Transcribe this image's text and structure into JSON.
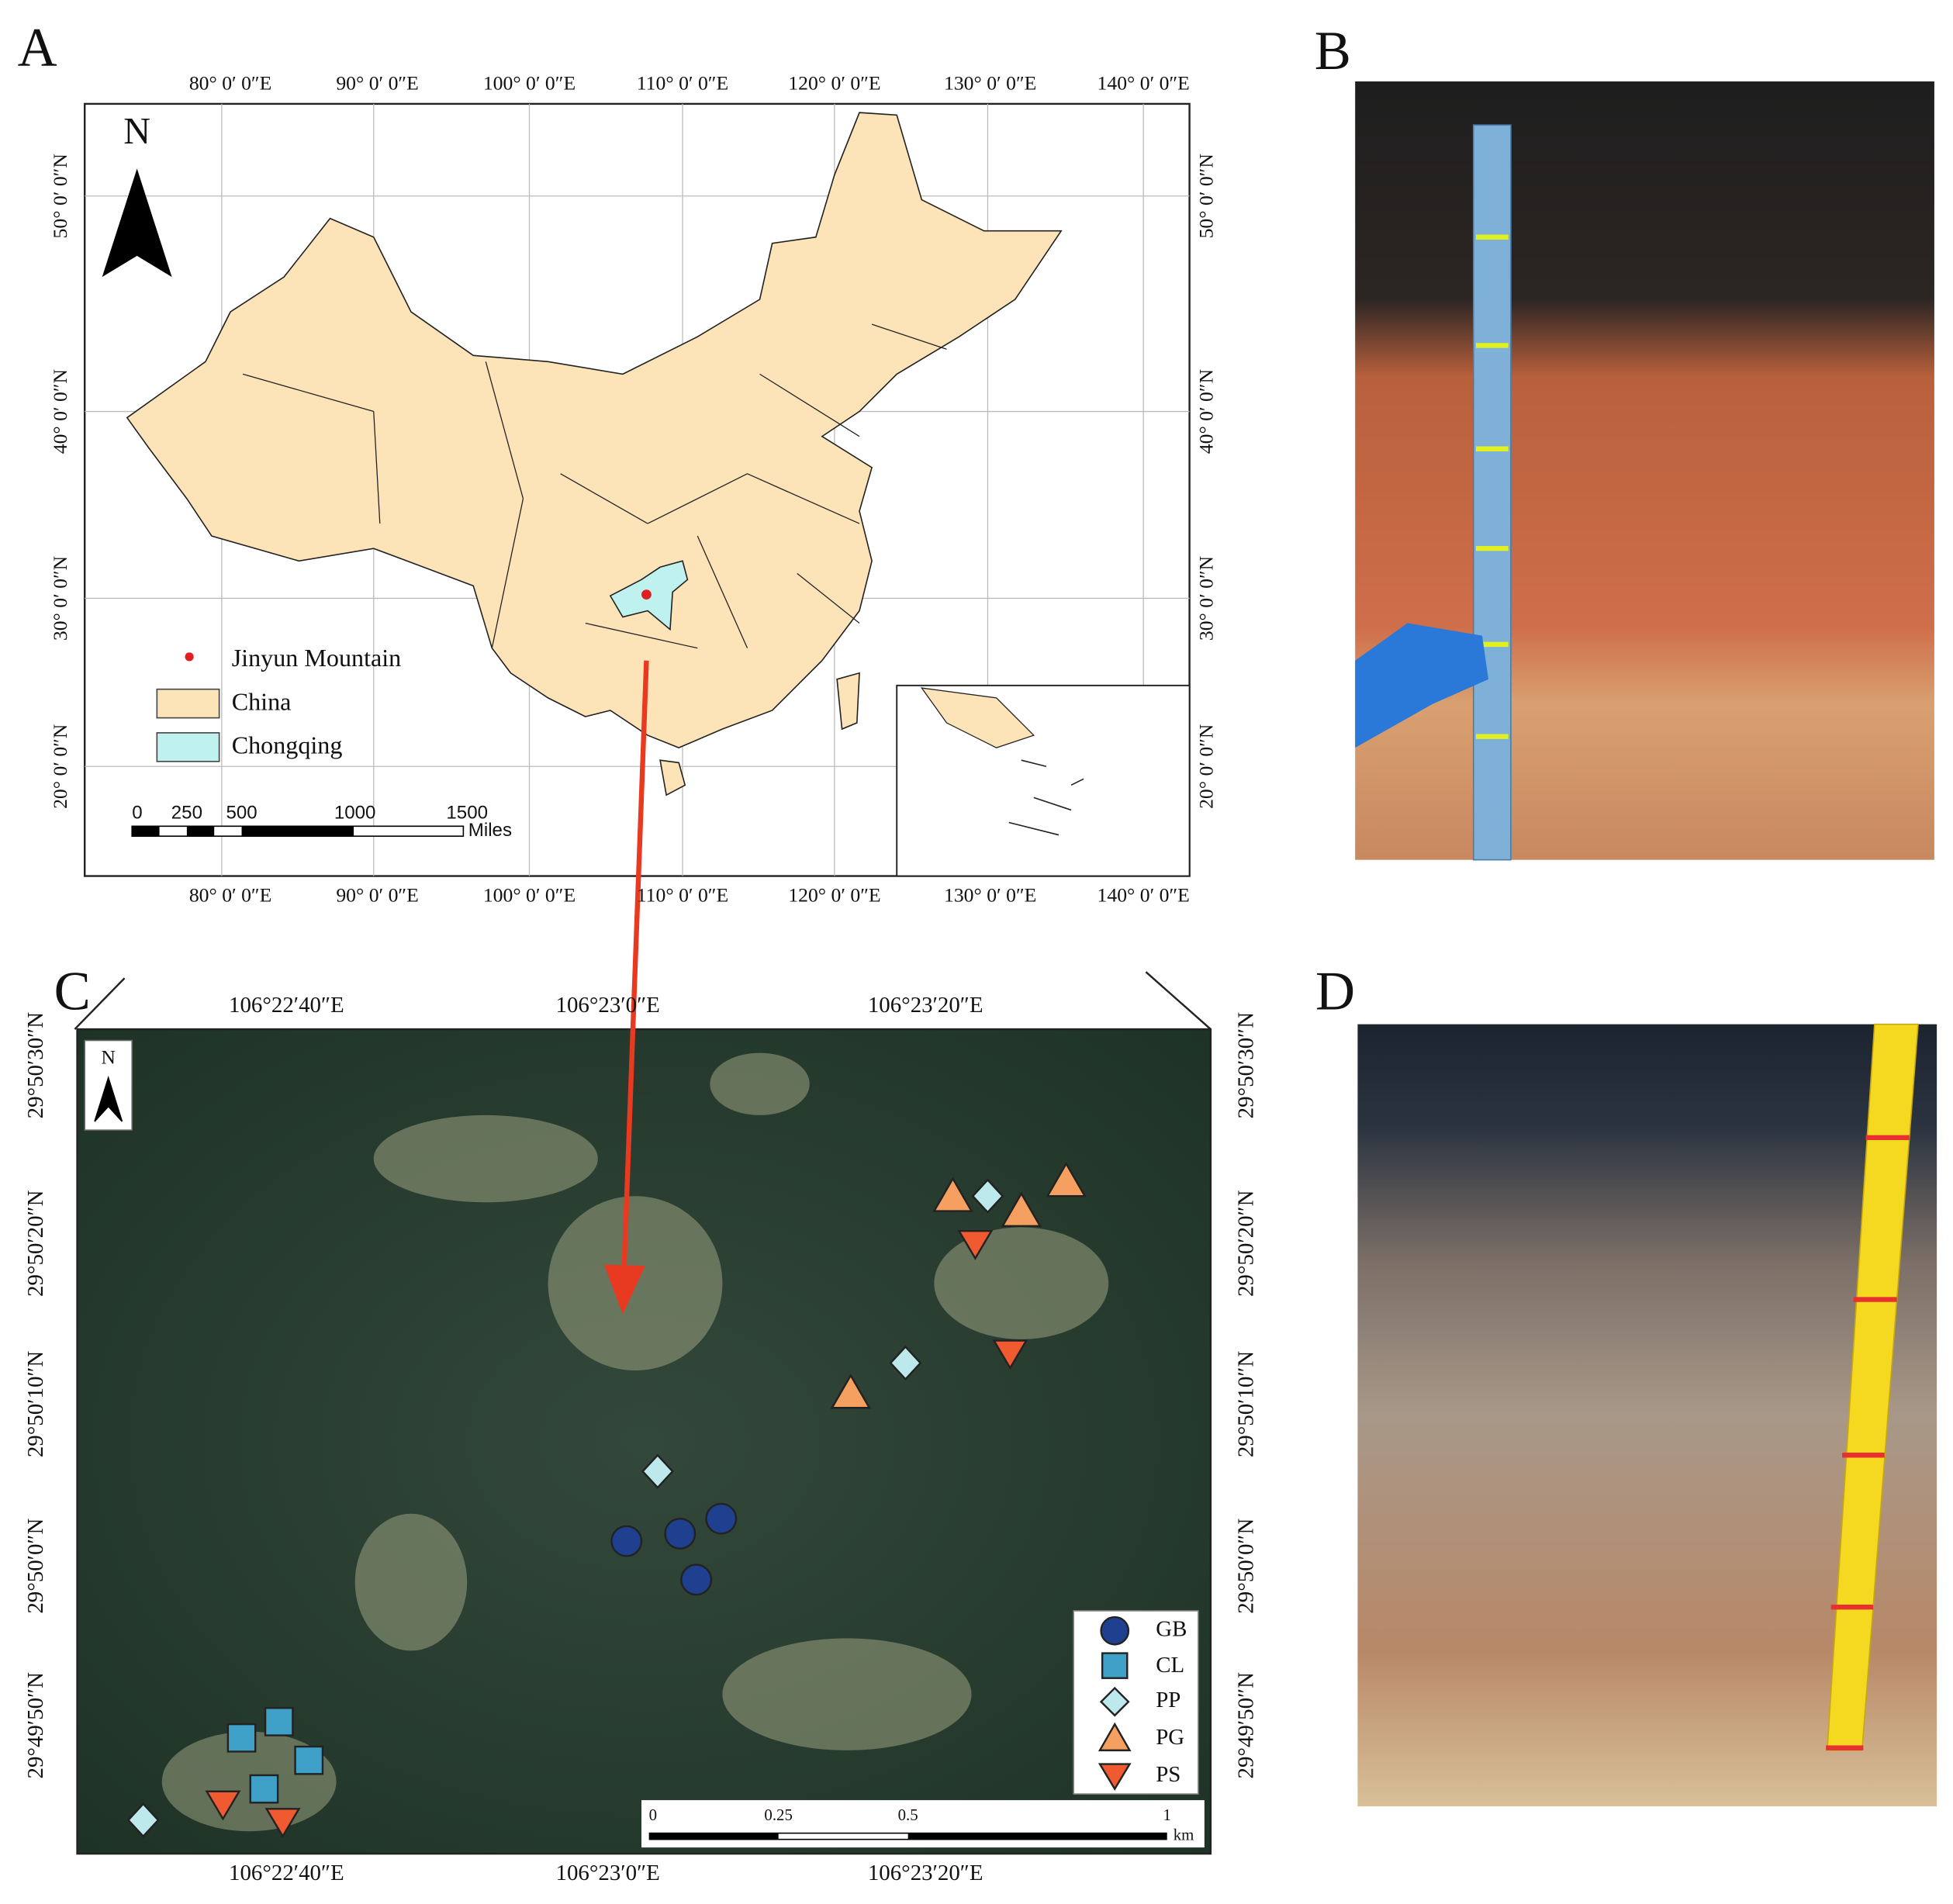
{
  "panels": {
    "a": "A",
    "b": "B",
    "c": "C",
    "d": "D"
  },
  "map_a": {
    "top_lon_labels": [
      "80° 0′ 0″E",
      "90° 0′ 0″E",
      "100° 0′ 0″E",
      "110° 0′ 0″E",
      "120° 0′ 0″E",
      "130° 0′ 0″E",
      "140° 0′ 0″E"
    ],
    "bottom_lon_labels": [
      "80° 0′ 0″E",
      "90° 0′ 0″E",
      "100° 0′ 0″E",
      "110° 0′ 0″E",
      "120° 0′ 0″E",
      "130° 0′ 0″E",
      "140° 0′ 0″E"
    ],
    "left_lat_labels": [
      "50° 0′ 0″N",
      "40° 0′ 0″N",
      "30° 0′ 0″N",
      "20° 0′ 0″N"
    ],
    "right_lat_labels": [
      "50° 0′ 0″N",
      "40° 0′ 0″N",
      "30° 0′ 0″N",
      "20° 0′ 0″N"
    ],
    "north": "N",
    "legend": [
      "Jinyun Mountain",
      "China",
      "Chongqing"
    ],
    "scale_labels": [
      "0",
      "250",
      "500",
      "1000",
      "1500"
    ],
    "scale_unit": "Miles"
  },
  "map_c": {
    "top_lon_labels": [
      "106°22′40″E",
      "106°23′0″E",
      "106°23′20″E"
    ],
    "bottom_lon_labels": [
      "106°22′40″E",
      "106°23′0″E",
      "106°23′20″E"
    ],
    "left_lat_labels": [
      "29°50′30″N",
      "29°50′20″N",
      "29°50′10″N",
      "29°50′0″N",
      "29°49′50″N"
    ],
    "right_lat_labels": [
      "29°50′30″N",
      "29°50′20″N",
      "29°50′10″N",
      "29°50′0″N",
      "29°49′50″N"
    ],
    "north": "N",
    "legend": [
      "GB",
      "CL",
      "PP",
      "PG",
      "PS"
    ],
    "scale_labels": [
      "0",
      "0.25",
      "0.5",
      "1"
    ],
    "scale_unit": "km"
  }
}
